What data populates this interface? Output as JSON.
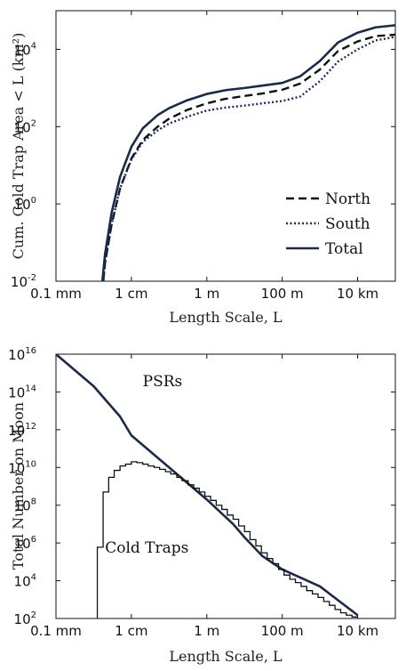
{
  "chart_data": [
    {
      "type": "line",
      "xscale": "log",
      "yscale": "log",
      "xlabel": "Length Scale, L",
      "ylabel": "Cum. Cold Trap Area < L (km²)",
      "xlim": [
        0.0001,
        100000
      ],
      "ylim": [
        0.01,
        100000
      ],
      "xticks": [
        {
          "value": 0.0001,
          "label": "0.1 mm"
        },
        {
          "value": 0.01,
          "label": "1 cm"
        },
        {
          "value": 1,
          "label": "1 m"
        },
        {
          "value": 100,
          "label": "100 m"
        },
        {
          "value": 10000,
          "label": "10 km"
        }
      ],
      "yticks": [
        {
          "value": 0.01,
          "base": "10",
          "exp": "-2"
        },
        {
          "value": 1,
          "base": "10",
          "exp": "0"
        },
        {
          "value": 100,
          "base": "10",
          "exp": "2"
        },
        {
          "value": 10000,
          "base": "10",
          "exp": "4"
        }
      ],
      "legend_position": "bottom-right",
      "series": [
        {
          "name": "North",
          "style": "dashed",
          "color": "#111111",
          "points": [
            [
              0.0018,
              0.01
            ],
            [
              0.002,
              0.03
            ],
            [
              0.003,
              0.3
            ],
            [
              0.005,
              2.5
            ],
            [
              0.01,
              15
            ],
            [
              0.02,
              45
            ],
            [
              0.05,
              100
            ],
            [
              0.1,
              160
            ],
            [
              0.3,
              270
            ],
            [
              1,
              400
            ],
            [
              3,
              520
            ],
            [
              10,
              620
            ],
            [
              30,
              720
            ],
            [
              100,
              900
            ],
            [
              300,
              1300
            ],
            [
              1000,
              3000
            ],
            [
              3000,
              9000
            ],
            [
              10000,
              16000
            ],
            [
              30000,
              22000
            ],
            [
              100000,
              24000
            ]
          ]
        },
        {
          "name": "South",
          "style": "dotted",
          "color": "#1a2a6a",
          "points": [
            [
              0.0018,
              0.01
            ],
            [
              0.002,
              0.03
            ],
            [
              0.003,
              0.3
            ],
            [
              0.005,
              2.5
            ],
            [
              0.01,
              14
            ],
            [
              0.02,
              40
            ],
            [
              0.05,
              80
            ],
            [
              0.1,
              120
            ],
            [
              0.3,
              180
            ],
            [
              1,
              260
            ],
            [
              3,
              310
            ],
            [
              10,
              350
            ],
            [
              30,
              400
            ],
            [
              100,
              460
            ],
            [
              300,
              600
            ],
            [
              1000,
              1500
            ],
            [
              3000,
              4800
            ],
            [
              10000,
              10000
            ],
            [
              30000,
              17000
            ],
            [
              100000,
              21000
            ]
          ]
        },
        {
          "name": "Total",
          "style": "solid",
          "color": "#1a2a4a",
          "points": [
            [
              0.0017,
              0.01
            ],
            [
              0.002,
              0.05
            ],
            [
              0.003,
              0.6
            ],
            [
              0.005,
              5
            ],
            [
              0.01,
              30
            ],
            [
              0.02,
              90
            ],
            [
              0.05,
              200
            ],
            [
              0.1,
              300
            ],
            [
              0.3,
              480
            ],
            [
              1,
              700
            ],
            [
              3,
              870
            ],
            [
              10,
              1000
            ],
            [
              30,
              1150
            ],
            [
              100,
              1350
            ],
            [
              300,
              2000
            ],
            [
              1000,
              5000
            ],
            [
              3000,
              15000
            ],
            [
              10000,
              27000
            ],
            [
              30000,
              37000
            ],
            [
              100000,
              42000
            ]
          ]
        }
      ]
    },
    {
      "type": "line",
      "xscale": "log",
      "yscale": "log",
      "xlabel": "Length Scale, L",
      "ylabel": "Total Number on Moon",
      "xlim": [
        0.0001,
        100000
      ],
      "ylim": [
        100,
        10000000000000000
      ],
      "xticks": [
        {
          "value": 0.0001,
          "label": "0.1 mm"
        },
        {
          "value": 0.01,
          "label": "1 cm"
        },
        {
          "value": 1,
          "label": "1 m"
        },
        {
          "value": 100,
          "label": "100 m"
        },
        {
          "value": 10000,
          "label": "10 km"
        }
      ],
      "yticks": [
        {
          "value": 100,
          "base": "10",
          "exp": "2"
        },
        {
          "value": 10000,
          "base": "10",
          "exp": "4"
        },
        {
          "value": 1000000,
          "base": "10",
          "exp": "6"
        },
        {
          "value": 100000000,
          "base": "10",
          "exp": "8"
        },
        {
          "value": 10000000000,
          "base": "10",
          "exp": "10"
        },
        {
          "value": 1000000000000,
          "base": "10",
          "exp": "12"
        },
        {
          "value": 100000000000000,
          "base": "10",
          "exp": "14"
        },
        {
          "value": 10000000000000000,
          "base": "10",
          "exp": "16"
        }
      ],
      "annotations": [
        {
          "text": "PSRs",
          "at": [
            0.02,
            200000000000000
          ]
        },
        {
          "text": "Cold Traps",
          "at": [
            0.002,
            300000
          ]
        }
      ],
      "series": [
        {
          "name": "PSRs",
          "style": "solid",
          "color": "#1a2a4a",
          "points": [
            [
              0.0001,
              10000000000000000
            ],
            [
              0.001,
              200000000000000
            ],
            [
              0.005,
              5000000000000
            ],
            [
              0.01,
              500000000000
            ],
            [
              0.1,
              10000000000
            ],
            [
              1,
              200000000
            ],
            [
              5,
              10000000
            ],
            [
              10,
              2000000
            ],
            [
              30,
              200000
            ],
            [
              100,
              40000
            ],
            [
              1000,
              5000
            ],
            [
              10000,
              150
            ]
          ]
        },
        {
          "name": "Cold Traps",
          "style": "step",
          "color": "#111111",
          "edges": [
            0.00125,
            0.00178,
            0.0025,
            0.0035,
            0.005,
            0.007,
            0.01,
            0.014,
            0.02,
            0.028,
            0.04,
            0.056,
            0.08,
            0.11,
            0.16,
            0.22,
            0.32,
            0.45,
            0.63,
            0.89,
            1.26,
            1.78,
            2.5,
            3.5,
            5,
            7,
            10,
            14,
            20,
            28,
            40,
            56,
            80,
            112,
            160,
            224,
            316,
            446,
            631,
            891,
            1260,
            1780,
            2510,
            3550,
            5010,
            7080,
            10000
          ],
          "values": [
            600000,
            500000000,
            3000000000,
            7000000000,
            12000000000,
            15000000000,
            20000000000,
            18000000000,
            15000000000,
            12000000000,
            10000000000,
            8000000000,
            6000000000,
            4500000000,
            3000000000,
            2000000000,
            1200000000,
            800000000,
            500000000,
            300000000,
            180000000,
            100000000,
            60000000,
            30000000,
            18000000,
            8000000,
            4000000,
            1500000,
            700000,
            300000,
            150000,
            80000,
            40000,
            20000,
            12000,
            8000,
            5000,
            3000,
            2000,
            1300,
            800,
            500,
            300,
            200,
            150,
            120
          ]
        }
      ]
    }
  ]
}
